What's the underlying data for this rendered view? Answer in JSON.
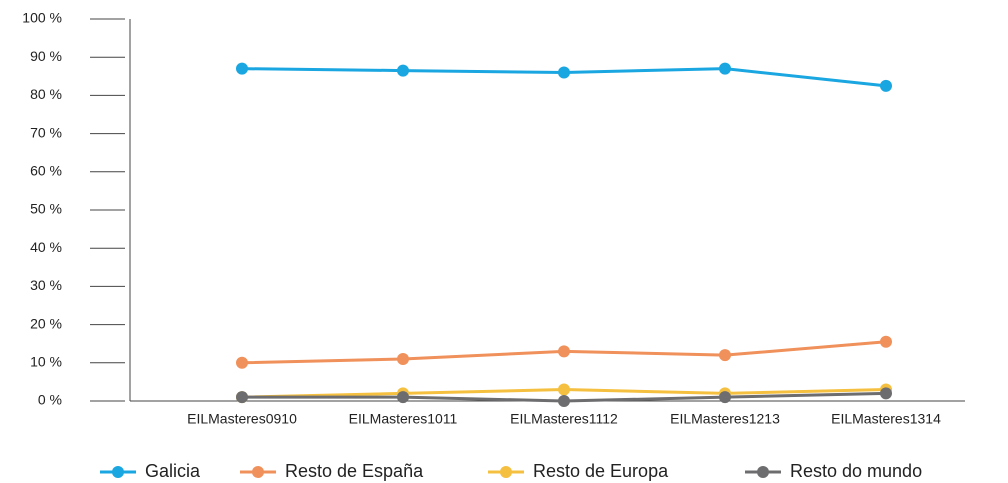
{
  "chart_data": {
    "type": "line",
    "categories": [
      "EILMasteres0910",
      "EILMasteres1011",
      "EILMasteres1112",
      "EILMasteres1213",
      "EILMasteres1314"
    ],
    "series": [
      {
        "name": "Galicia",
        "color": "#1aa6e0",
        "values": [
          87,
          86.5,
          86,
          87,
          82.5
        ]
      },
      {
        "name": "Resto de España",
        "color": "#f0905a",
        "values": [
          10,
          11,
          13,
          12,
          15.5
        ]
      },
      {
        "name": "Resto de Europa",
        "color": "#f5c040",
        "values": [
          1,
          2,
          3,
          2,
          3
        ]
      },
      {
        "name": "Resto do mundo",
        "color": "#6d6d6f",
        "values": [
          1,
          1,
          0,
          1,
          2
        ]
      }
    ],
    "ylim": [
      0,
      100
    ],
    "yticks": [
      {
        "value": 0,
        "label": "0 %"
      },
      {
        "value": 10,
        "label": "10 %"
      },
      {
        "value": 20,
        "label": "20 %"
      },
      {
        "value": 30,
        "label": "30 %"
      },
      {
        "value": 40,
        "label": "40 %"
      },
      {
        "value": 50,
        "label": "50 %"
      },
      {
        "value": 60,
        "label": "60 %"
      },
      {
        "value": 70,
        "label": "70 %"
      },
      {
        "value": 80,
        "label": "80 %"
      },
      {
        "value": 90,
        "label": "90 %"
      },
      {
        "value": 100,
        "label": "100 %"
      }
    ],
    "legend": "bottom"
  }
}
